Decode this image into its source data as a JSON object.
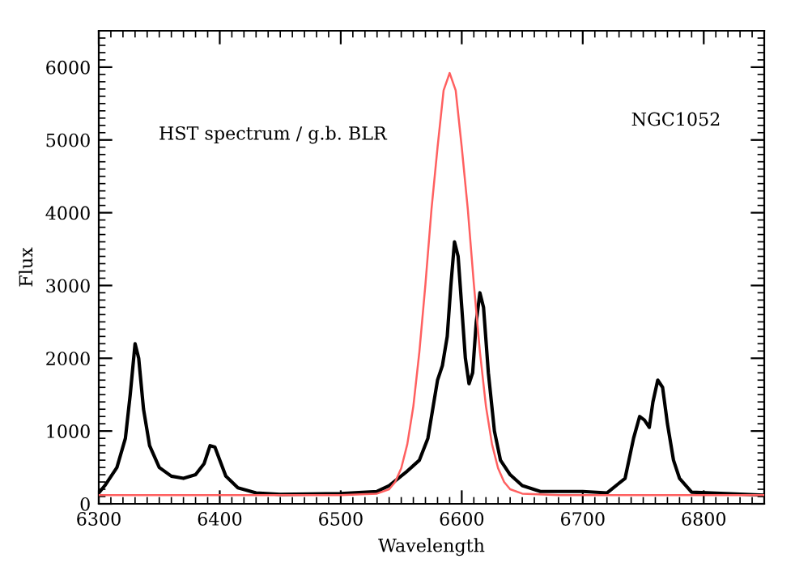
{
  "chart_data": {
    "type": "line",
    "xlabel": "Wavelength",
    "ylabel": "Flux",
    "annotations": [
      "HST spectrum / g.b. BLR",
      "NGC1052"
    ],
    "xlim": [
      6300,
      6850
    ],
    "ylim": [
      0,
      6500
    ],
    "xticks": [
      6300,
      6400,
      6500,
      6600,
      6700,
      6800
    ],
    "yticks": [
      0,
      1000,
      2000,
      3000,
      4000,
      5000,
      6000
    ],
    "grid": false,
    "legend": false,
    "marker": "none",
    "line_style": "solid",
    "series": [
      {
        "color": "#000000",
        "x": [
          6300,
          6305,
          6315,
          6322,
          6326,
          6330,
          6333,
          6337,
          6342,
          6350,
          6360,
          6370,
          6380,
          6387,
          6392,
          6396,
          6400,
          6405,
          6415,
          6430,
          6450,
          6500,
          6530,
          6540,
          6555,
          6565,
          6572,
          6577,
          6580,
          6584,
          6588,
          6591,
          6594,
          6597,
          6600,
          6603,
          6606,
          6609,
          6612,
          6615,
          6618,
          6622,
          6627,
          6632,
          6640,
          6650,
          6665,
          6700,
          6720,
          6735,
          6742,
          6747,
          6751,
          6755,
          6758,
          6762,
          6766,
          6770,
          6775,
          6780,
          6790,
          6850
        ],
        "values": [
          150,
          250,
          500,
          900,
          1500,
          2200,
          2000,
          1300,
          800,
          500,
          380,
          350,
          400,
          550,
          800,
          780,
          600,
          380,
          220,
          150,
          130,
          140,
          170,
          250,
          450,
          600,
          900,
          1400,
          1700,
          1900,
          2300,
          3000,
          3600,
          3400,
          2700,
          2000,
          1650,
          1800,
          2500,
          2900,
          2700,
          1800,
          1000,
          600,
          400,
          250,
          170,
          170,
          150,
          350,
          900,
          1200,
          1150,
          1050,
          1400,
          1700,
          1600,
          1100,
          600,
          350,
          160,
          120
        ]
      },
      {
        "color": "#ff6060",
        "x": [
          6300,
          6500,
          6530,
          6540,
          6545,
          6550,
          6555,
          6560,
          6565,
          6570,
          6575,
          6580,
          6585,
          6590,
          6595,
          6600,
          6605,
          6610,
          6615,
          6620,
          6625,
          6630,
          6635,
          6640,
          6650,
          6680,
          6850
        ],
        "values": [
          120,
          120,
          140,
          200,
          300,
          490,
          820,
          1340,
          2090,
          3020,
          4050,
          4900,
          5680,
          5920,
          5680,
          4900,
          4050,
          3020,
          2090,
          1340,
          820,
          490,
          300,
          200,
          140,
          120,
          120
        ]
      }
    ]
  }
}
